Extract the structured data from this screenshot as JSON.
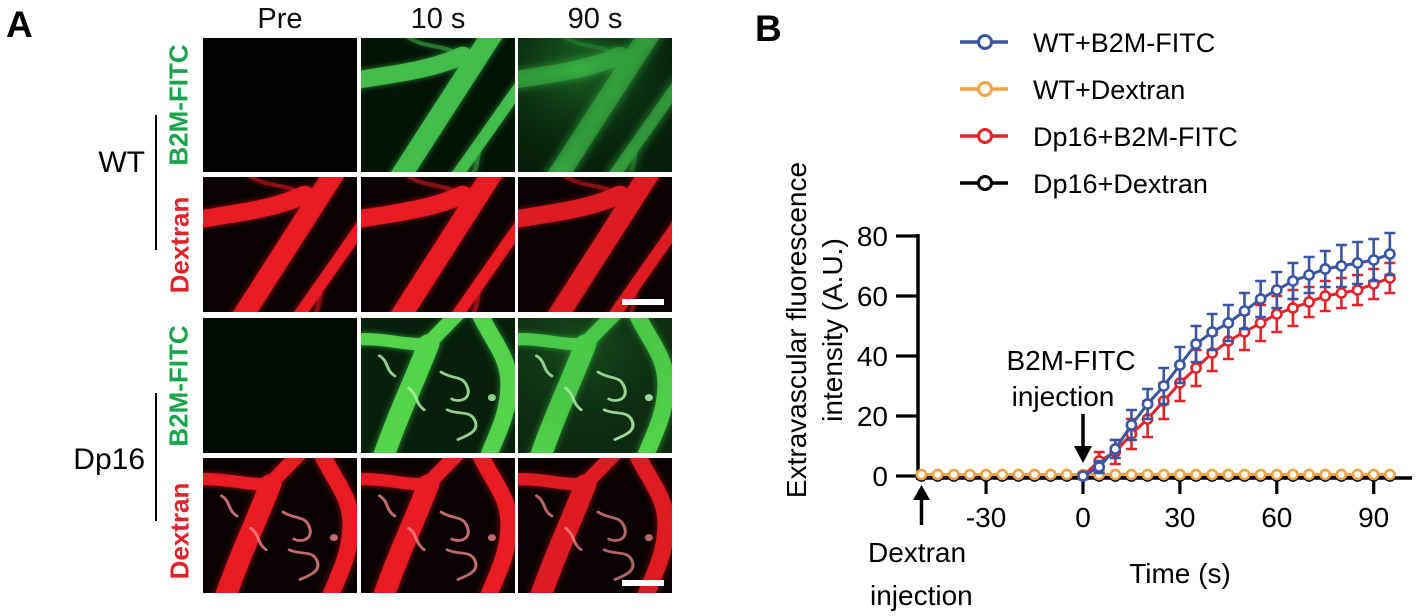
{
  "figure": {
    "panel_a": {
      "label": "A",
      "column_headers": [
        "Pre",
        "10 s",
        "90 s"
      ],
      "row_labels": [
        {
          "text": "B2M-FITC",
          "color": "#17a44a"
        },
        {
          "text": "Dextran",
          "color": "#e2232a"
        },
        {
          "text": "B2M-FITC",
          "color": "#17a44a"
        },
        {
          "text": "Dextran",
          "color": "#e2232a"
        }
      ],
      "group_labels": [
        "WT",
        "Dp16"
      ],
      "image_colors": {
        "b2m_channel": "#3ec94f",
        "dextran_channel": "#ee1c24"
      }
    },
    "panel_b": {
      "label": "B"
    }
  },
  "chart_data": {
    "type": "line",
    "title": "",
    "xlabel": "Time (s)",
    "ylabel": "Extravascular fluorescence intensity (A.U.)",
    "ylabel_lines": [
      "Extravascular fluorescence",
      "intensity (A.U.)"
    ],
    "xlim": [
      -51,
      101
    ],
    "ylim": [
      0,
      80
    ],
    "xticks": [
      -30,
      0,
      30,
      60,
      90
    ],
    "yticks": [
      0,
      20,
      40,
      60,
      80
    ],
    "grid": false,
    "legend_position": "top-right",
    "series": [
      {
        "name": "WT+B2M-FITC",
        "color": "#3b55a5",
        "x": [
          0,
          5,
          10,
          15,
          20,
          25,
          30,
          35,
          40,
          45,
          50,
          55,
          60,
          65,
          70,
          75,
          80,
          85,
          90,
          95
        ],
        "y": [
          0,
          3,
          9,
          17,
          24,
          30,
          37,
          44,
          48,
          51,
          55,
          59,
          62,
          65,
          67,
          69,
          70,
          71,
          72,
          74
        ],
        "yerr": [
          1,
          2,
          3,
          5,
          5,
          6,
          6,
          6,
          6,
          6,
          6,
          6,
          6,
          6,
          6,
          6,
          7,
          7,
          7,
          7
        ]
      },
      {
        "name": "WT+Dextran",
        "color": "#f2a340",
        "x": [
          -50,
          -45,
          -40,
          -35,
          -30,
          -25,
          -20,
          -15,
          -10,
          -5,
          0,
          5,
          10,
          15,
          20,
          25,
          30,
          35,
          40,
          45,
          50,
          55,
          60,
          65,
          70,
          75,
          80,
          85,
          90,
          95
        ],
        "y": [
          0.5,
          0.5,
          0.5,
          0.5,
          0.5,
          0.5,
          0.5,
          0.5,
          0.5,
          0.5,
          0.5,
          0.5,
          0.5,
          0.5,
          0.5,
          0.5,
          0.5,
          0.5,
          0.5,
          0.5,
          0.5,
          0.5,
          0.5,
          0.5,
          0.5,
          0.5,
          0.5,
          0.5,
          0.5,
          0.5
        ],
        "yerr": [
          0,
          0,
          0,
          0,
          0,
          0,
          0,
          0,
          0,
          0,
          0,
          0,
          0,
          0,
          0,
          0,
          0,
          0,
          0,
          0,
          0,
          0,
          0,
          0,
          0,
          0,
          0,
          0,
          0,
          0
        ]
      },
      {
        "name": "Dp16+B2M-FITC",
        "color": "#e2232a",
        "x": [
          0,
          5,
          10,
          15,
          20,
          25,
          30,
          35,
          40,
          45,
          50,
          55,
          60,
          65,
          70,
          75,
          80,
          85,
          90,
          95
        ],
        "y": [
          0,
          5,
          8,
          14,
          19,
          25,
          31,
          36,
          41,
          45,
          48,
          51,
          54,
          56,
          58,
          60,
          61,
          62,
          64,
          66
        ],
        "yerr": [
          1,
          3,
          4,
          5,
          6,
          6,
          6,
          6,
          6,
          6,
          6,
          6,
          6,
          6,
          5,
          5,
          5,
          5,
          5,
          5
        ]
      },
      {
        "name": "Dp16+Dextran",
        "color": "#000000",
        "x": [
          -50,
          -45,
          -40,
          -35,
          -30,
          -25,
          -20,
          -15,
          -10,
          -5,
          0,
          5,
          10,
          15,
          20,
          25,
          30,
          35,
          40,
          45,
          50,
          55,
          60,
          65,
          70,
          75,
          80,
          85,
          90,
          95
        ],
        "y": [
          0,
          0,
          0,
          0,
          0,
          0,
          0,
          0,
          0,
          0,
          0,
          0,
          0,
          0,
          0,
          0,
          0,
          0,
          0,
          0,
          0,
          0,
          0,
          0,
          0,
          0,
          0,
          0,
          0,
          0
        ],
        "yerr": [
          0,
          0,
          0,
          0,
          0,
          0,
          0,
          0,
          0,
          0,
          0,
          0,
          0,
          0,
          0,
          0,
          0,
          0,
          0,
          0,
          0,
          0,
          0,
          0,
          0,
          0,
          0,
          0,
          0,
          0
        ]
      }
    ],
    "annotations": [
      {
        "lines": [
          "B2M-FITC",
          "injection"
        ],
        "t": 0,
        "arrow": "down"
      },
      {
        "lines": [
          "Dextran",
          "injection"
        ],
        "t": -50,
        "arrow": "up"
      }
    ]
  }
}
